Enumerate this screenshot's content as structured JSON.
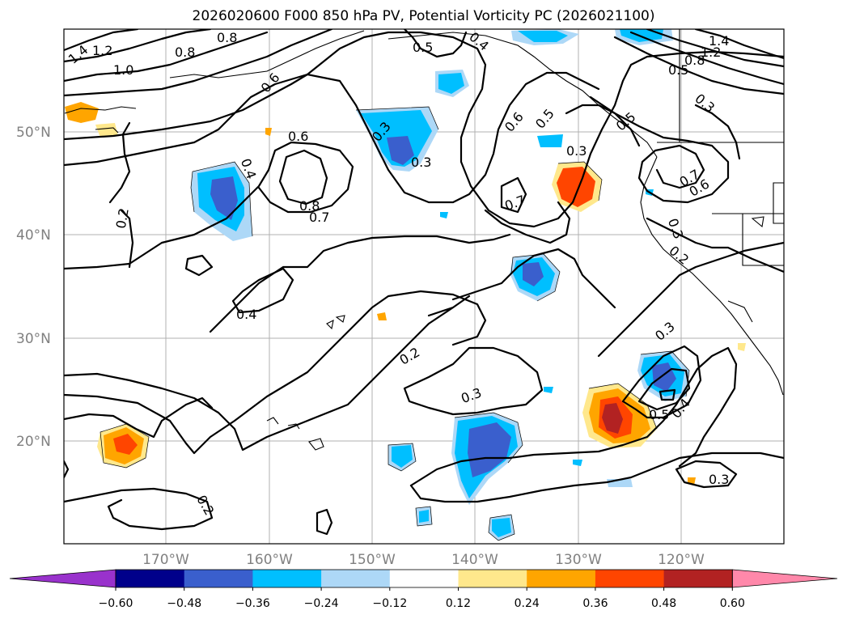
{
  "title": "2026020600 F000 850 hPa PV, Potential Vorticity PC (2026021100)",
  "lat_labels": [
    "50°N",
    "40°N",
    "30°N",
    "20°N"
  ],
  "lon_labels": [
    "170°W",
    "160°W",
    "150°W",
    "140°W",
    "130°W",
    "120°W"
  ],
  "colorbar": {
    "ticks": [
      "−0.60",
      "−0.48",
      "−0.36",
      "−0.24",
      "−0.12",
      "0.12",
      "0.24",
      "0.36",
      "0.48",
      "0.60"
    ],
    "colors": [
      "#9932cc",
      "#00008b",
      "#3a5fcd",
      "#00bfff",
      "#add8f7",
      "#ffffff",
      "#ffe88c",
      "#ffa500",
      "#ff4500",
      "#b22222",
      "#ff88aa"
    ]
  },
  "contour_labels": [
    "1.4",
    "1.2",
    "1.0",
    "0.8",
    "0.8",
    "0.6",
    "0.5",
    "0.4",
    "0.3",
    "0.3",
    "0.6",
    "0.8",
    "0.7",
    "0.4",
    "0.2",
    "0.4",
    "0.6",
    "0.5",
    "0.3",
    "0.7",
    "1.4",
    "1.2",
    "0.8",
    "0.5",
    "0.3",
    "0.5",
    "0.7",
    "0.6",
    "0.3",
    "0.2",
    "0.2",
    "0.3",
    "0.3",
    "0.5",
    "0.4",
    "0.3",
    "0.2"
  ]
}
